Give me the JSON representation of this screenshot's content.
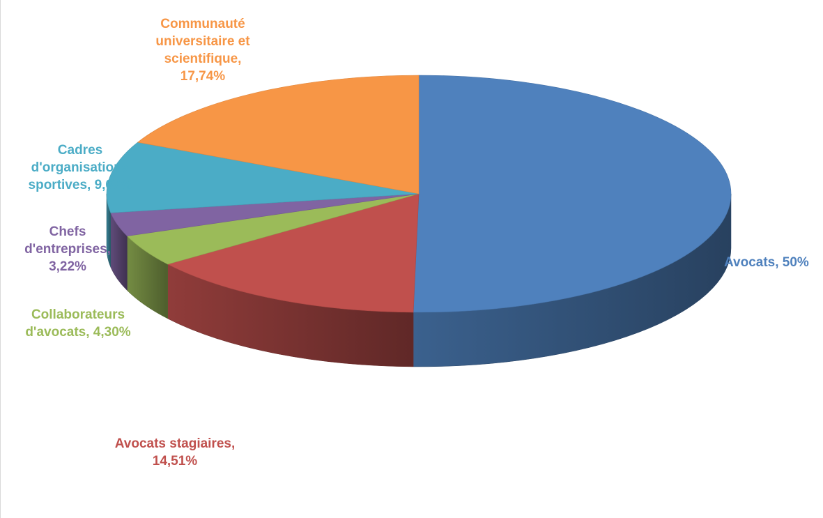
{
  "chart_data": {
    "type": "pie",
    "title": "",
    "slices": [
      {
        "label": "Avocats, 50%",
        "value": 50,
        "color": "#4f81bd"
      },
      {
        "label": "Avocats stagiaires,\n14,51%",
        "value": 14.51,
        "color": "#c0504d"
      },
      {
        "label": "Collaborateurs\nd'avocats, 4,30%",
        "value": 4.3,
        "color": "#9bbb59"
      },
      {
        "label": "Chefs\nd'entreprises,\n3,22%",
        "value": 3.22,
        "color": "#8064a2"
      },
      {
        "label": "Cadres\nd'organisations\nsportives, 9,67%",
        "value": 9.67,
        "color": "#4bacc6"
      },
      {
        "label": "Communauté\nuniversitaire et\nscientifique,\n17,74%",
        "value": 17.74,
        "color": "#f79646"
      }
    ]
  }
}
